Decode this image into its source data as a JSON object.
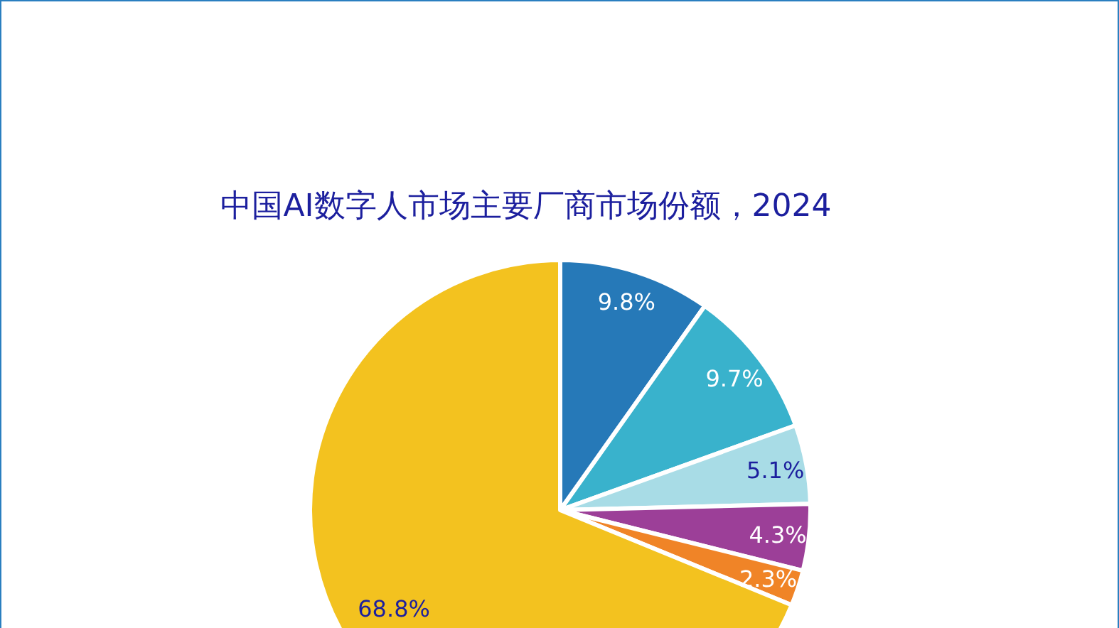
{
  "chart_data": {
    "type": "pie",
    "title": "中国AI数字人市场主要厂商市场份额，2024",
    "categories": [
      null,
      null,
      null,
      null,
      null,
      null
    ],
    "values": [
      9.8,
      9.7,
      5.1,
      4.3,
      2.3,
      68.8
    ],
    "value_labels": [
      "9.8%",
      "9.7%",
      "5.1%",
      "4.3%",
      "2.3%",
      "68.8%"
    ],
    "colors": [
      "#2679b8",
      "#39b2cc",
      "#a8dce6",
      "#9c3f98",
      "#f08427",
      "#f3c21f"
    ]
  }
}
